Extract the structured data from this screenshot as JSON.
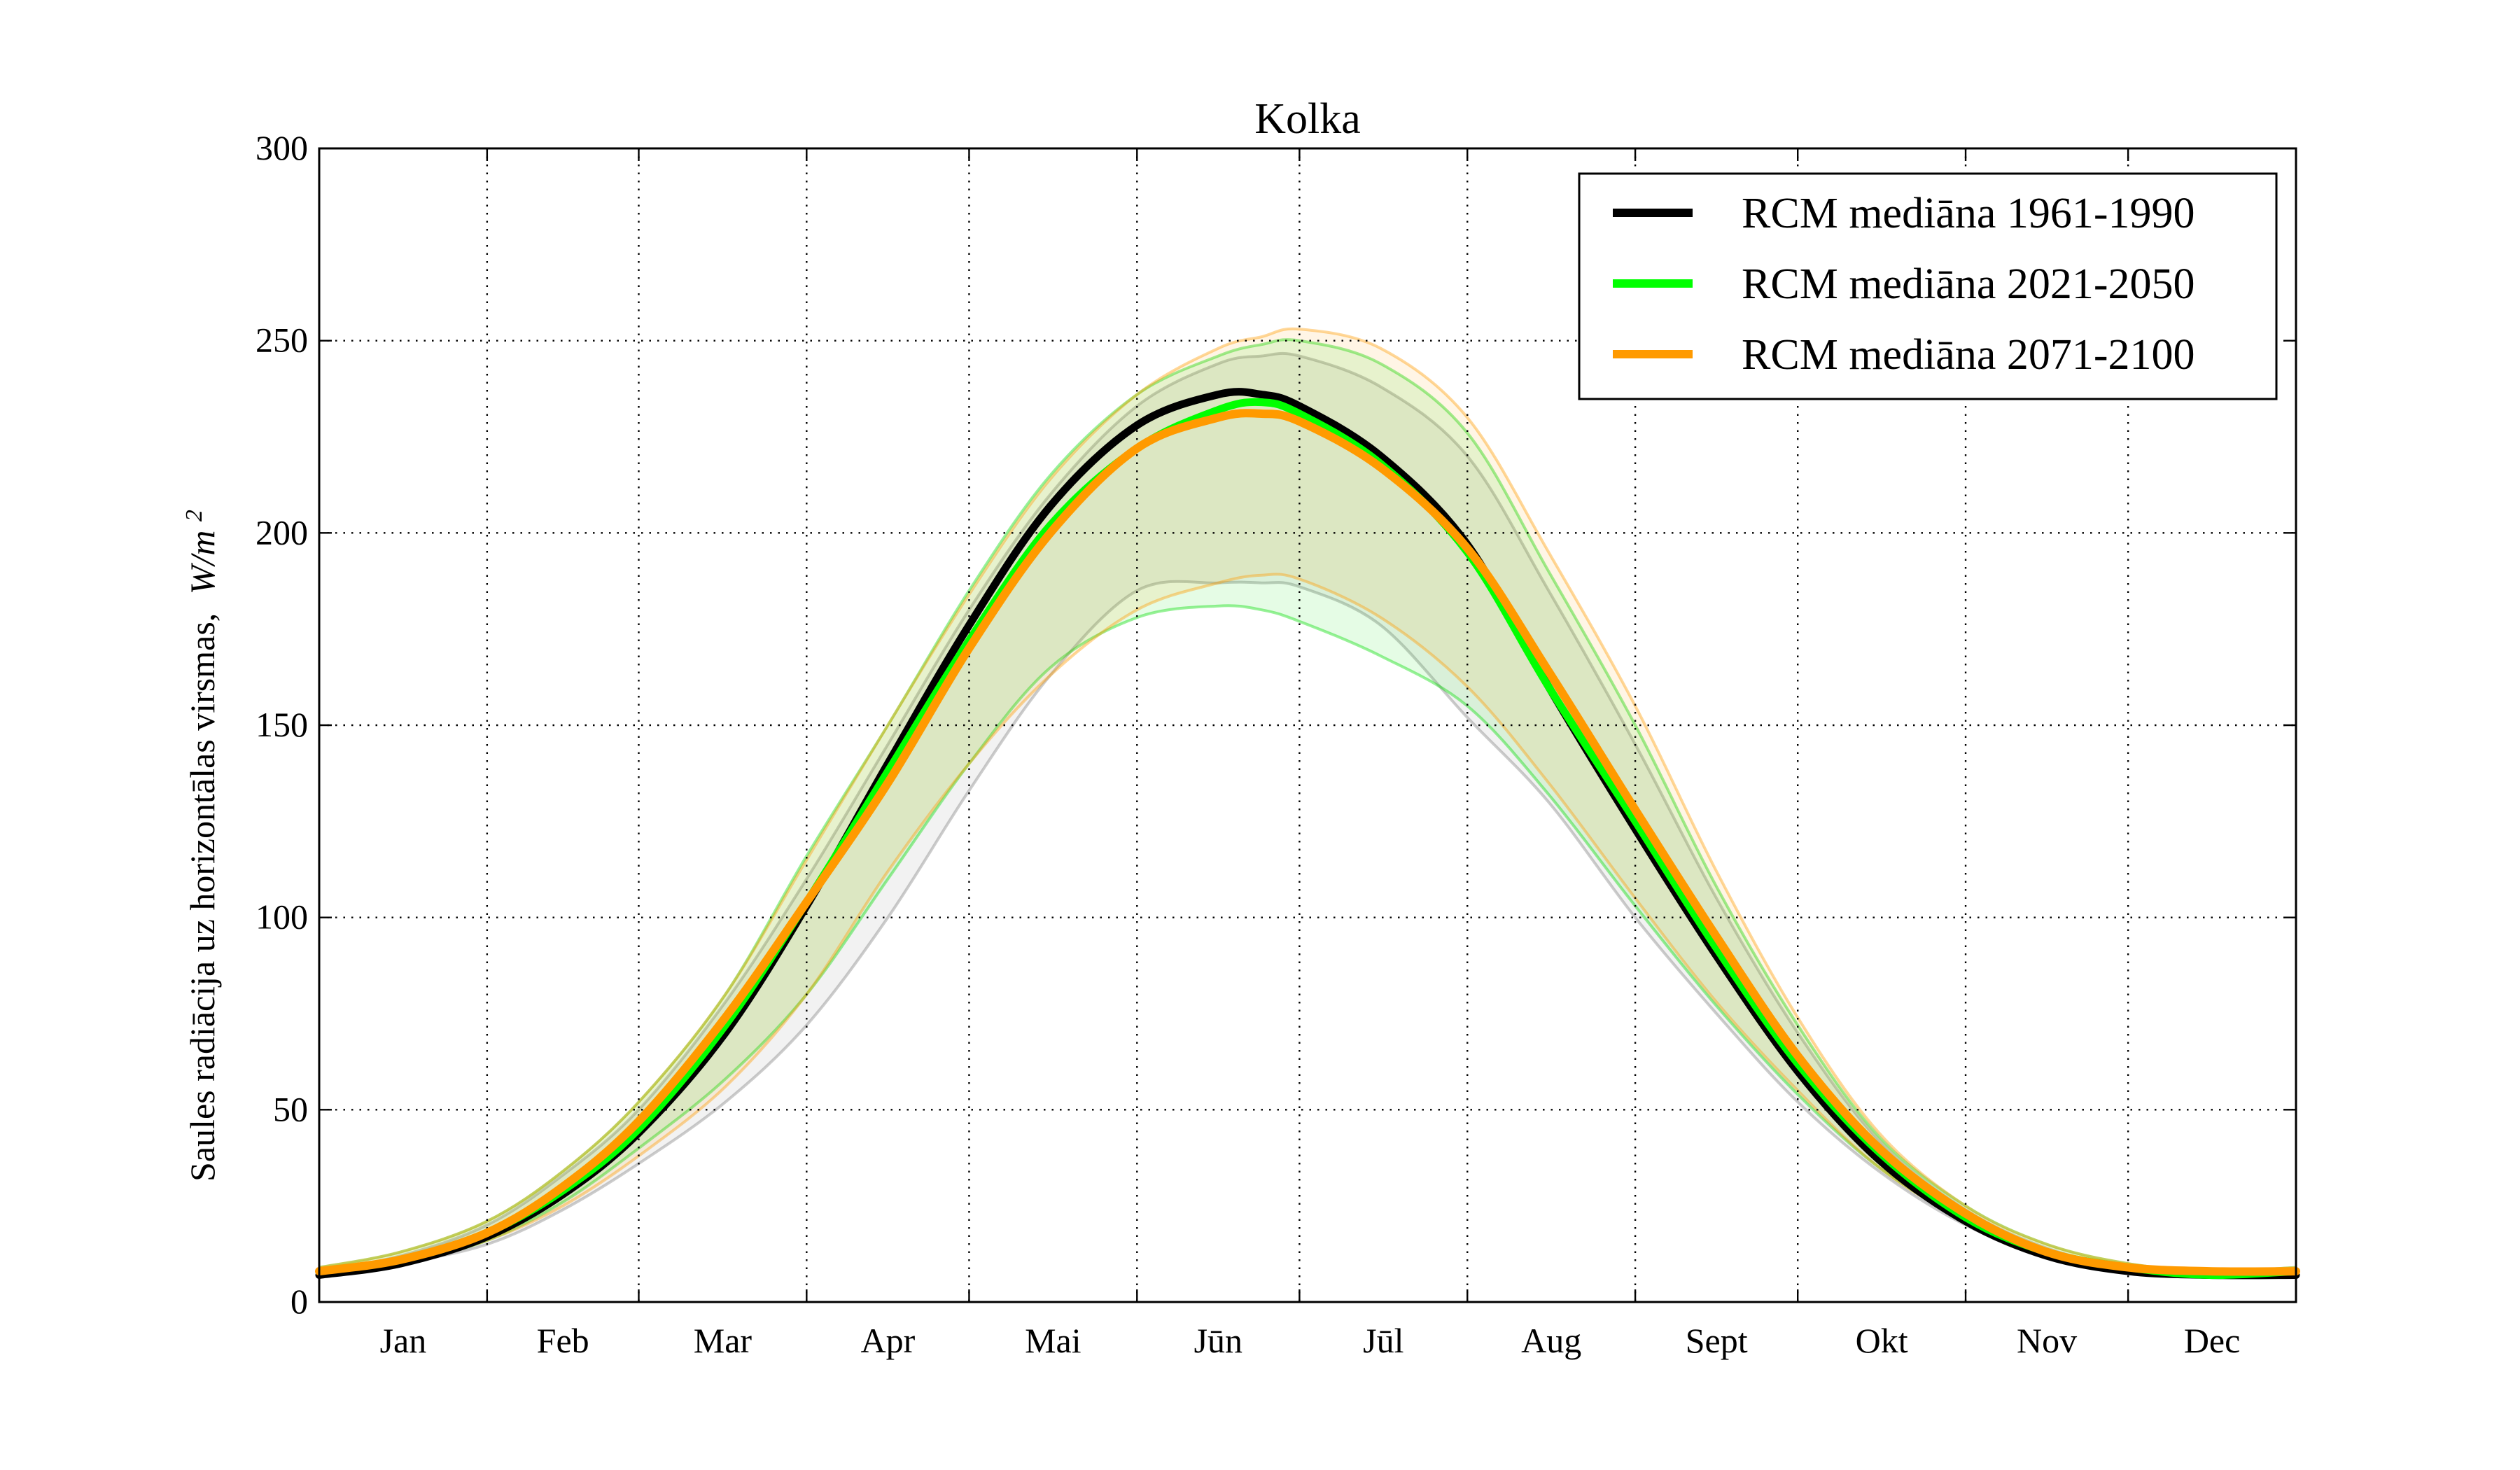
{
  "chart_data": {
    "type": "line",
    "title": "Kolka",
    "ylabel": "Saules radiācija uz horizontālas virsmas,",
    "ylabel_unit": "W/m",
    "ylabel_unit_exp": "2",
    "xlabel": "",
    "xlim": [
      0,
      365
    ],
    "ylim": [
      0,
      300
    ],
    "yticks": [
      0,
      50,
      100,
      150,
      200,
      250,
      300
    ],
    "month_boundaries": [
      0,
      31,
      59,
      90,
      120,
      151,
      181,
      212,
      243,
      273,
      304,
      334,
      365
    ],
    "months": [
      "Jan",
      "Feb",
      "Mar",
      "Apr",
      "Mai",
      "Jūn",
      "Jūl",
      "Aug",
      "Sept",
      "Okt",
      "Nov",
      "Dec"
    ],
    "grid": true,
    "legend_position": "top-right",
    "x": [
      0,
      15,
      31,
      45,
      59,
      75,
      90,
      105,
      120,
      135,
      151,
      166,
      174,
      181,
      196,
      212,
      227,
      243,
      258,
      273,
      288,
      304,
      319,
      334,
      349,
      365
    ],
    "series": [
      {
        "name": "RCM mediāna 1961-1990",
        "color": "#000000",
        "width": 11,
        "values": [
          7,
          10,
          17,
          28,
          44,
          70,
          103,
          140,
          176,
          207,
          228,
          236,
          236,
          233,
          220,
          197,
          160,
          123,
          90,
          60,
          37,
          21,
          12,
          8,
          7,
          7
        ]
      },
      {
        "name": "RCM mediāna 2021-2050",
        "color": "#00ff00",
        "width": 11,
        "values": [
          8,
          11,
          18,
          29,
          45,
          72,
          104,
          138,
          172,
          202,
          222,
          232,
          234,
          231,
          218,
          195,
          160,
          125,
          92,
          62,
          39,
          22,
          13,
          9,
          7,
          8
        ]
      },
      {
        "name": "RCM mediāna 2071-2100",
        "color": "#ff9a00",
        "width": 12,
        "values": [
          8,
          11,
          18,
          30,
          47,
          74,
          104,
          135,
          170,
          200,
          222,
          230,
          231,
          229,
          217,
          196,
          164,
          128,
          95,
          64,
          40,
          23,
          13,
          9,
          8,
          8
        ]
      }
    ],
    "envelopes": [
      {
        "color": "#7f7f7f",
        "upper": [
          8,
          12,
          20,
          33,
          50,
          78,
          110,
          145,
          180,
          210,
          233,
          244,
          246,
          246,
          238,
          220,
          185,
          145,
          105,
          70,
          42,
          24,
          14,
          9,
          7,
          8
        ],
        "lower": [
          7,
          10,
          15,
          24,
          36,
          52,
          72,
          100,
          133,
          163,
          185,
          187,
          187,
          186,
          176,
          152,
          130,
          100,
          75,
          52,
          34,
          20,
          12,
          8,
          7,
          7
        ]
      },
      {
        "color": "#00dd00",
        "upper": [
          9,
          13,
          21,
          34,
          52,
          80,
          116,
          150,
          185,
          215,
          236,
          246,
          249,
          250,
          244,
          226,
          190,
          150,
          108,
          72,
          43,
          25,
          15,
          10,
          8,
          9
        ],
        "lower": [
          7,
          10,
          16,
          26,
          40,
          58,
          80,
          110,
          140,
          165,
          178,
          181,
          180,
          177,
          168,
          155,
          132,
          103,
          77,
          54,
          35,
          21,
          12,
          8,
          7,
          7
        ]
      },
      {
        "color": "#ff9a00",
        "upper": [
          9,
          13,
          21,
          34,
          52,
          80,
          115,
          150,
          184,
          214,
          236,
          248,
          251,
          253,
          248,
          230,
          195,
          155,
          112,
          74,
          44,
          25,
          15,
          10,
          8,
          9
        ],
        "lower": [
          7,
          10,
          16,
          25,
          38,
          56,
          80,
          112,
          140,
          163,
          180,
          187,
          189,
          188,
          178,
          160,
          135,
          105,
          78,
          55,
          35,
          21,
          12,
          8,
          7,
          7
        ]
      }
    ]
  }
}
